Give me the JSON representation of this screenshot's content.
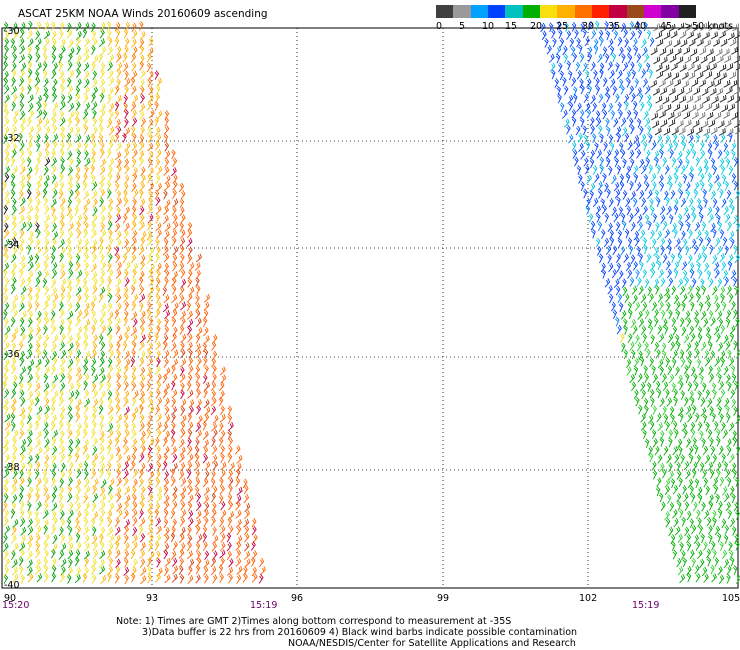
{
  "title": "ASCAT 25KM NOAA Winds 20160609 ascending",
  "legend": {
    "colors": [
      "#404040",
      "#9a9a9a",
      "#00a0ff",
      "#0040ff",
      "#00c0c0",
      "#00b000",
      "#f8e010",
      "#ffb000",
      "#ff7000",
      "#ff2000",
      "#c00040",
      "#9a4a1a",
      "#d000d0",
      "#8000a0",
      "#202020"
    ],
    "labels": [
      "0",
      "5",
      "10",
      "15",
      "20",
      "25",
      "30",
      "35",
      "40",
      "45",
      ">50 knots"
    ]
  },
  "axes": {
    "lat_labels": [
      "-30",
      "-32",
      "-34",
      "-36",
      "-38",
      "-40"
    ],
    "lon_labels": [
      "90",
      "93",
      "96",
      "99",
      "102",
      "105"
    ]
  },
  "times": {
    "left_swath_start": "15:20",
    "left_swath_end": "15:19",
    "right_swath": "15:19"
  },
  "notes": {
    "line1": "Note: 1) Times are GMT 2)Times along bottom correspond to measurement at -35S",
    "line2": "3)Data buffer is 22 hrs from 20160609 4) Black wind barbs indicate possible contamination",
    "line3": "NOAA/NESDIS/Center for Satellite Applications and Research"
  }
}
